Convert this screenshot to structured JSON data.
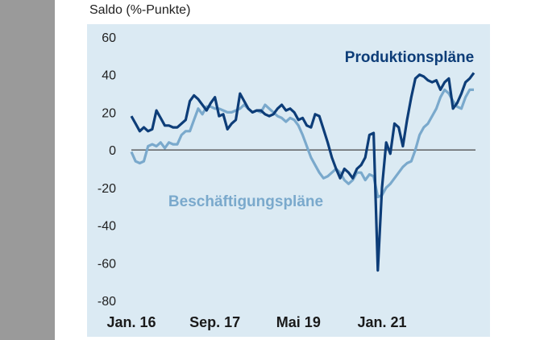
{
  "chart_data": {
    "type": "line",
    "ylabel": "Saldo (%-Punkte)",
    "ylim": [
      -80,
      60
    ],
    "y_ticks": [
      "60",
      "40",
      "20",
      "0",
      "-20",
      "-40",
      "-60",
      "-80"
    ],
    "x_tick_labels": [
      "Jan. 16",
      "Sep. 17",
      "Mai 19",
      "Jan. 21"
    ],
    "series": [
      {
        "name": "Produktionspläne",
        "color": "#0d3d78",
        "values": [
          18,
          14,
          10,
          12,
          10,
          11,
          21,
          17,
          13,
          13,
          12,
          12,
          14,
          16,
          26,
          29,
          27,
          24,
          21,
          25,
          28,
          18,
          19,
          11,
          14,
          16,
          30,
          26,
          22,
          20,
          21,
          21,
          19,
          18,
          19,
          22,
          24,
          21,
          22,
          20,
          16,
          17,
          13,
          12,
          19,
          18,
          11,
          4,
          -4,
          -10,
          -15,
          -10,
          -12,
          -15,
          -10,
          -8,
          -4,
          8,
          9,
          -64,
          -20,
          4,
          -2,
          14,
          12,
          2,
          16,
          28,
          38,
          40,
          39,
          37,
          36,
          37,
          32,
          36,
          38,
          22,
          25,
          30,
          36,
          38,
          41
        ]
      },
      {
        "name": "Beschäftigungspläne",
        "color": "#7aa9cc",
        "values": [
          -1,
          -6,
          -7,
          -6,
          2,
          3,
          2,
          4,
          1,
          4,
          3,
          3,
          8,
          10,
          10,
          16,
          22,
          19,
          23,
          23,
          22,
          22,
          21,
          20,
          20,
          21,
          22,
          24,
          22,
          20,
          21,
          20,
          24,
          22,
          20,
          18,
          17,
          15,
          17,
          16,
          13,
          8,
          2,
          -4,
          -8,
          -12,
          -15,
          -14,
          -12,
          -10,
          -12,
          -16,
          -18,
          -16,
          -12,
          -12,
          -16,
          -13,
          -14,
          -25,
          -24,
          -20,
          -18,
          -15,
          -12,
          -9,
          -7,
          -6,
          0,
          8,
          12,
          14,
          18,
          22,
          28,
          32,
          30,
          26,
          23,
          22,
          28,
          32,
          32
        ]
      }
    ],
    "zero_line": true,
    "grid": false
  }
}
